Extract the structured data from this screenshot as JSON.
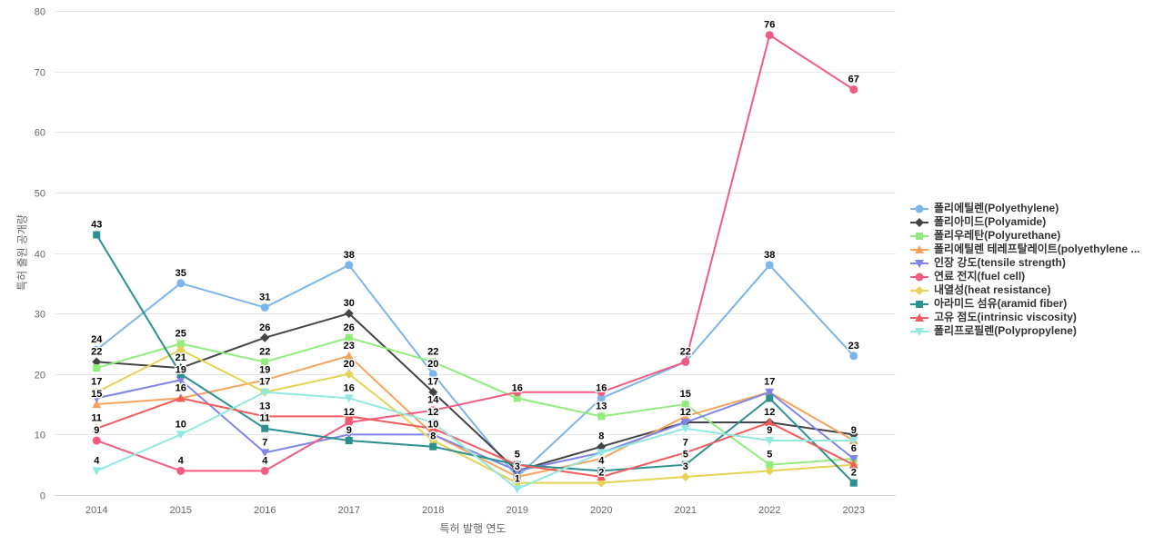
{
  "chart_data": {
    "type": "line",
    "title": "",
    "xlabel": "특허 발행 연도",
    "ylabel": "특허 출원 공개량",
    "ylim": [
      0,
      80
    ],
    "ytick_step": 10,
    "grid": true,
    "legend_position": "right",
    "categories": [
      "2014",
      "2015",
      "2016",
      "2017",
      "2018",
      "2019",
      "2020",
      "2021",
      "2022",
      "2023"
    ],
    "yticks": [
      0,
      10,
      20,
      30,
      40,
      50,
      60,
      70,
      80
    ],
    "series": [
      {
        "name": "폴리에틸렌(Polyethylene)",
        "slug": "polyethylene",
        "color": "#7cb5ec",
        "marker": "circle",
        "values": [
          24,
          35,
          31,
          38,
          20,
          3,
          16,
          22,
          38,
          23
        ],
        "labels_visible": [
          1,
          1,
          1,
          1,
          1,
          1,
          1,
          0,
          1,
          1
        ]
      },
      {
        "name": "폴리아미드(Polyamide)",
        "slug": "polyamide",
        "color": "#434348",
        "marker": "diamond",
        "values": [
          22,
          21,
          26,
          30,
          17,
          4,
          8,
          12,
          12,
          10
        ],
        "labels_visible": [
          1,
          1,
          1,
          1,
          1,
          0,
          1,
          1,
          1,
          0
        ]
      },
      {
        "name": "폴리우레탄(Polyurethane)",
        "slug": "polyurethane",
        "color": "#90ed7d",
        "marker": "square",
        "values": [
          21,
          25,
          22,
          26,
          22,
          16,
          13,
          15,
          5,
          6
        ],
        "labels_visible": [
          0,
          1,
          1,
          1,
          1,
          1,
          1,
          1,
          1,
          0
        ]
      },
      {
        "name": "폴리에틸렌 테레프탈레이트(polyethylene ...",
        "slug": "pet",
        "color": "#f7a35c",
        "marker": "triangle",
        "values": [
          15,
          16,
          19,
          23,
          10,
          3,
          6,
          13,
          17,
          9
        ],
        "labels_visible": [
          1,
          0,
          1,
          1,
          1,
          0,
          0,
          0,
          1,
          1
        ]
      },
      {
        "name": "인장 강도(tensile strength)",
        "slug": "tensile-strength",
        "color": "#8085e9",
        "marker": "triangle-down",
        "values": [
          16,
          19,
          7,
          10,
          10,
          4,
          7,
          12,
          17,
          6
        ],
        "labels_visible": [
          0,
          1,
          1,
          0,
          0,
          0,
          0,
          0,
          0,
          1
        ]
      },
      {
        "name": "연료 전지(fuel cell)",
        "slug": "fuel-cell",
        "color": "#f15c80",
        "marker": "circle",
        "values": [
          9,
          4,
          4,
          12,
          14,
          17,
          17,
          22,
          76,
          67
        ],
        "labels_visible": [
          1,
          1,
          1,
          1,
          1,
          0,
          0,
          1,
          1,
          1
        ]
      },
      {
        "name": "내열성(heat resistance)",
        "slug": "heat-resistance",
        "color": "#e4d354",
        "marker": "diamond",
        "values": [
          17,
          24,
          17,
          20,
          9,
          2,
          2,
          3,
          4,
          5
        ],
        "labels_visible": [
          1,
          0,
          1,
          1,
          0,
          0,
          1,
          1,
          0,
          0
        ]
      },
      {
        "name": "아라미드 섬유(aramid fiber)",
        "slug": "aramid-fiber",
        "color": "#2b908f",
        "marker": "square",
        "values": [
          43,
          20,
          11,
          9,
          8,
          5,
          4,
          5,
          16,
          2
        ],
        "labels_visible": [
          1,
          0,
          1,
          1,
          1,
          0,
          1,
          1,
          0,
          1
        ]
      },
      {
        "name": "고유 점도(intrinsic viscosity)",
        "slug": "intrinsic-viscosity",
        "color": "#f45b5b",
        "marker": "triangle",
        "values": [
          11,
          16,
          13,
          13,
          11,
          5,
          3,
          7,
          12,
          5
        ],
        "labels_visible": [
          1,
          1,
          1,
          0,
          0,
          1,
          0,
          1,
          0,
          0
        ]
      },
      {
        "name": "폴리프로필렌(Polypropylene)",
        "slug": "polypropylene",
        "color": "#91e8e1",
        "marker": "triangle-down",
        "values": [
          4,
          10,
          17,
          16,
          12,
          1,
          7,
          11,
          9,
          9
        ],
        "labels_visible": [
          1,
          1,
          0,
          1,
          1,
          1,
          0,
          0,
          1,
          0
        ]
      }
    ],
    "colors": {
      "grid_line": "#e6e6e6",
      "axis_line": "#ccd6eb",
      "tick_label": "#666666",
      "axis_title": "#666666",
      "data_label": "#000000",
      "legend_text": "#333333"
    }
  }
}
